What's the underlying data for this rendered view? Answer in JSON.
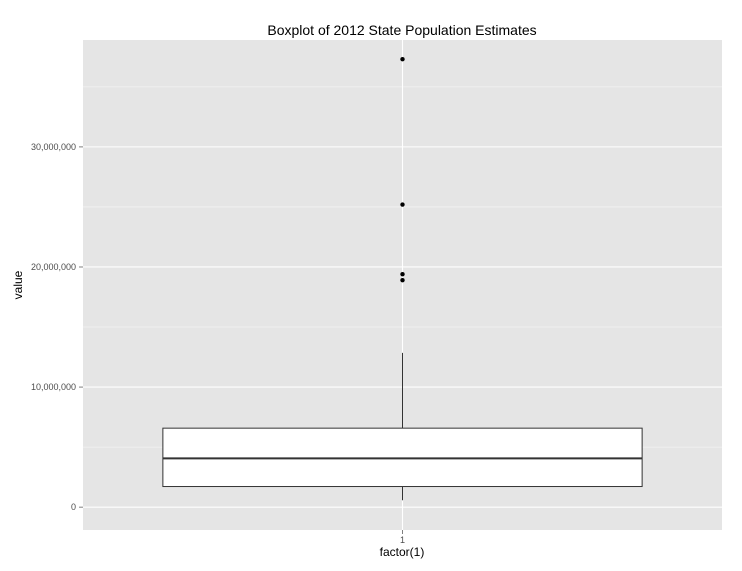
{
  "chart_data": {
    "type": "box",
    "title": "Boxplot of 2012 State Population Estimates",
    "xlabel": "factor(1)",
    "ylabel": "value",
    "categories": [
      "1"
    ],
    "ylim": [
      -1900000,
      38900000
    ],
    "y_ticks": [
      0,
      10000000,
      20000000,
      30000000
    ],
    "y_tick_labels": [
      "0",
      "10,000,000",
      "20,000,000",
      "30,000,000"
    ],
    "box": {
      "category": "1",
      "whisker_low": 580000,
      "q1": 1720000,
      "median": 4060000,
      "q3": 6580000,
      "whisker_high": 12850000,
      "outliers": [
        18900000,
        19400000,
        25200000,
        37300000
      ]
    },
    "grid": true,
    "legend": "none",
    "colors": {
      "panel_background": "#e5e5e5",
      "major_grid": "#ffffff",
      "minor_grid": "#f2f2f2",
      "box_fill": "#ffffff",
      "box_stroke": "#333333",
      "outlier": "#000000",
      "tick_text": "#4d4d4d"
    }
  }
}
